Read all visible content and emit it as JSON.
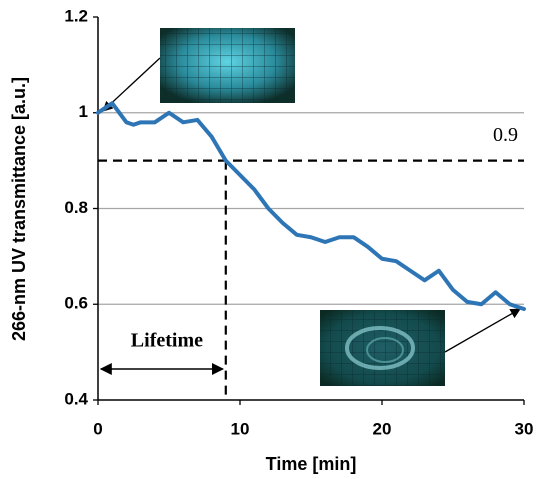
{
  "chart_data": {
    "type": "line",
    "x_label": "Time [min]",
    "y_label": "266-nm UV transmittance [a.u.]",
    "x": [
      0,
      0.5,
      1,
      1.5,
      2,
      2.5,
      3,
      4,
      5,
      6,
      7,
      8,
      9,
      10,
      11,
      12,
      13,
      14,
      15,
      16,
      17,
      18,
      19,
      20,
      21,
      22,
      23,
      24,
      25,
      26,
      27,
      28,
      29,
      30
    ],
    "series": [
      {
        "color": "#2e75b6",
        "values": [
          1.0,
          1.01,
          1.02,
          1.0,
          0.98,
          0.975,
          0.98,
          0.98,
          1.0,
          0.98,
          0.985,
          0.95,
          0.9,
          0.87,
          0.84,
          0.8,
          0.77,
          0.745,
          0.74,
          0.73,
          0.74,
          0.74,
          0.72,
          0.695,
          0.69,
          0.67,
          0.65,
          0.67,
          0.63,
          0.605,
          0.6,
          0.625,
          0.6,
          0.59
        ]
      }
    ],
    "xlim": [
      0,
      30
    ],
    "xticks": [
      0,
      10,
      20,
      30
    ],
    "ylim": [
      0.4,
      1.2
    ],
    "yticks": [
      0.4,
      0.6,
      0.8,
      1,
      1.2
    ],
    "grid": true,
    "threshold_line": 0.9,
    "lifetime_line": 9,
    "annotation": "Lifetime"
  }
}
